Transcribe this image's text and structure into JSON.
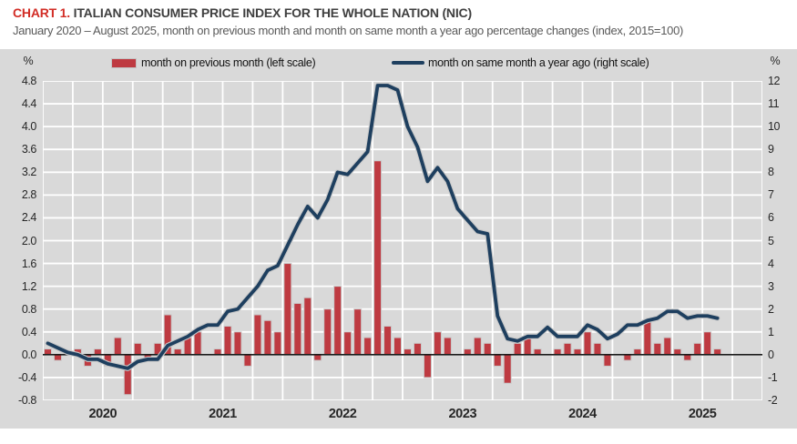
{
  "header": {
    "chart_number": "CHART 1.",
    "title": " ITALIAN CONSUMER PRICE INDEX FOR THE WHOLE NATION (NIC)",
    "subtitle": "January 2020 – August 2025, month on previous month and month on same month a year ago percentage changes (index, 2015=100)"
  },
  "legend": {
    "bar_label": "month on previous month (left scale)",
    "line_label": "month on same month a year ago (right scale)"
  },
  "colors": {
    "bar": "#be3a41",
    "line": "#1e3f5f",
    "panel_bg": "#d9d9d9",
    "gridline": "#ffffff",
    "zero_line": "#1a1a1a",
    "halo": "#c9c9c9",
    "title_accent": "#d22d26"
  },
  "chart_data": {
    "type": "bar",
    "title": "CHART 1. ITALIAN CONSUMER PRICE INDEX FOR THE WHOLE NATION (NIC)",
    "subtitle": "January 2020 – August 2025, month on previous month and month on same month a year ago percentage changes (index, 2015=100)",
    "x": [
      "Jan 2020",
      "Feb 2020",
      "Mar 2020",
      "Apr 2020",
      "May 2020",
      "Jun 2020",
      "Jul 2020",
      "Aug 2020",
      "Sep 2020",
      "Oct 2020",
      "Nov 2020",
      "Dec 2020",
      "Jan 2021",
      "Feb 2021",
      "Mar 2021",
      "Apr 2021",
      "May 2021",
      "Jun 2021",
      "Jul 2021",
      "Aug 2021",
      "Sep 2021",
      "Oct 2021",
      "Nov 2021",
      "Dec 2021",
      "Jan 2022",
      "Feb 2022",
      "Mar 2022",
      "Apr 2022",
      "May 2022",
      "Jun 2022",
      "Jul 2022",
      "Aug 2022",
      "Sep 2022",
      "Oct 2022",
      "Nov 2022",
      "Dec 2022",
      "Jan 2023",
      "Feb 2023",
      "Mar 2023",
      "Apr 2023",
      "May 2023",
      "Jun 2023",
      "Jul 2023",
      "Aug 2023",
      "Sep 2023",
      "Oct 2023",
      "Nov 2023",
      "Dec 2023",
      "Jan 2024",
      "Feb 2024",
      "Mar 2024",
      "Apr 2024",
      "May 2024",
      "Jun 2024",
      "Jul 2024",
      "Aug 2024",
      "Sep 2024",
      "Oct 2024",
      "Nov 2024",
      "Dec 2024",
      "Jan 2025",
      "Feb 2025",
      "Mar 2025",
      "Apr 2025",
      "May 2025",
      "Jun 2025",
      "Jul 2025",
      "Aug 2025"
    ],
    "series": [
      {
        "name": "month on previous month (left scale)",
        "type": "bar",
        "axis": "left",
        "values": [
          0.1,
          -0.1,
          0.0,
          0.1,
          -0.2,
          0.1,
          -0.2,
          0.3,
          -0.7,
          0.2,
          -0.1,
          0.2,
          0.7,
          0.1,
          0.3,
          0.4,
          0.0,
          0.1,
          0.5,
          0.4,
          -0.2,
          0.7,
          0.6,
          0.4,
          1.6,
          0.9,
          1.0,
          -0.1,
          0.8,
          1.2,
          0.4,
          0.8,
          0.3,
          3.4,
          0.5,
          0.3,
          0.1,
          0.2,
          -0.4,
          0.4,
          0.3,
          0.0,
          0.1,
          0.3,
          0.2,
          -0.2,
          -0.5,
          0.2,
          0.3,
          0.1,
          0.0,
          0.1,
          0.2,
          0.1,
          0.4,
          0.2,
          -0.2,
          0.0,
          -0.1,
          0.1,
          0.6,
          0.2,
          0.3,
          0.1,
          -0.1,
          0.2,
          0.4,
          0.1
        ]
      },
      {
        "name": "month on same month a year ago (right scale)",
        "type": "line",
        "axis": "right",
        "values": [
          0.5,
          0.3,
          0.1,
          0.0,
          -0.2,
          -0.2,
          -0.4,
          -0.5,
          -0.6,
          -0.3,
          -0.2,
          -0.2,
          0.4,
          0.6,
          0.8,
          1.1,
          1.3,
          1.3,
          1.9,
          2.0,
          2.5,
          3.0,
          3.7,
          3.9,
          4.8,
          5.7,
          6.5,
          6.0,
          6.8,
          8.0,
          7.9,
          8.4,
          8.9,
          11.8,
          11.8,
          11.6,
          10.0,
          9.1,
          7.6,
          8.2,
          7.6,
          6.4,
          5.9,
          5.4,
          5.3,
          1.7,
          0.7,
          0.6,
          0.8,
          0.8,
          1.2,
          0.8,
          0.8,
          0.8,
          1.3,
          1.1,
          0.7,
          0.9,
          1.3,
          1.3,
          1.5,
          1.6,
          1.9,
          1.9,
          1.6,
          1.7,
          1.7,
          1.6
        ]
      }
    ],
    "left_axis": {
      "unit": "%",
      "min": -0.8,
      "max": 4.8,
      "step": 0.4,
      "ticks": [
        "4.8",
        "4.4",
        "4.0",
        "3.6",
        "3.2",
        "2.8",
        "2.4",
        "2.0",
        "1.6",
        "1.2",
        "0.8",
        "0.4",
        "0.0",
        "-0.4",
        "-0.8"
      ]
    },
    "right_axis": {
      "unit": "%",
      "min": -2,
      "max": 12,
      "step": 1,
      "ticks": [
        "12",
        "11",
        "10",
        "9",
        "8",
        "7",
        "6",
        "5",
        "4",
        "3",
        "2",
        "1",
        "0",
        "-1",
        "-2"
      ]
    },
    "x_axis": {
      "year_labels": [
        "2020",
        "2021",
        "2022",
        "2023",
        "2024",
        "2025"
      ],
      "axis_months_total": 72,
      "data_months": 68,
      "vertical_gridline_every_months": 3
    },
    "grid": true,
    "legend_position": "top"
  }
}
